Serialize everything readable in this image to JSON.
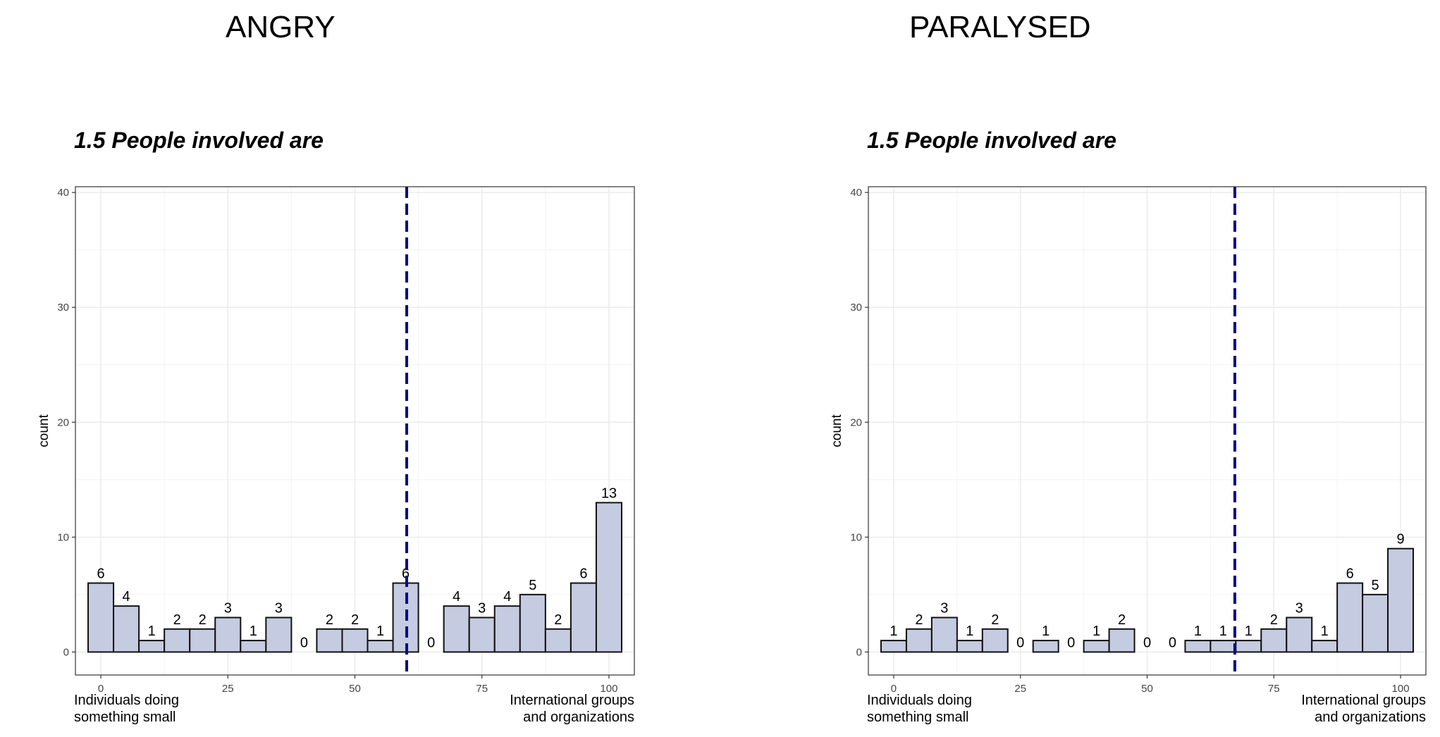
{
  "titles": {
    "left": "ANGRY",
    "right": "PARALYSED"
  },
  "colors": {
    "bar_fill": "#c5cbe0",
    "bar_stroke": "#111111",
    "mean_line": "#0a0a80",
    "grid": "#ebebeb",
    "frame": "#333333"
  },
  "chart_data": [
    {
      "type": "bar",
      "title": "1.5 People involved are",
      "ylabel": "count",
      "xlabel_left": [
        "Individuals doing",
        "something small"
      ],
      "xlabel_right": [
        "International groups",
        "and organizations"
      ],
      "xlim": [
        -5,
        105
      ],
      "ylim": [
        -2,
        40.5
      ],
      "xticks": [
        0,
        25,
        50,
        75,
        100
      ],
      "yticks": [
        0,
        10,
        20,
        30,
        40
      ],
      "bin_centers": [
        0,
        5,
        10,
        15,
        20,
        25,
        30,
        35,
        40,
        45,
        50,
        55,
        60,
        65,
        70,
        75,
        80,
        85,
        90,
        95,
        100
      ],
      "bin_width": 5,
      "values": [
        6,
        4,
        1,
        2,
        2,
        3,
        1,
        3,
        0,
        2,
        2,
        1,
        6,
        0,
        4,
        3,
        4,
        5,
        2,
        6,
        13
      ],
      "mean_line_x": 60.2
    },
    {
      "type": "bar",
      "title": "1.5 People involved are",
      "ylabel": "count",
      "xlabel_left": [
        "Individuals doing",
        "something small"
      ],
      "xlabel_right": [
        "International groups",
        "and organizations"
      ],
      "xlim": [
        -5,
        105
      ],
      "ylim": [
        -2,
        40.5
      ],
      "xticks": [
        0,
        25,
        50,
        75,
        100
      ],
      "yticks": [
        0,
        10,
        20,
        30,
        40
      ],
      "bin_centers": [
        0,
        5,
        10,
        15,
        20,
        25,
        30,
        35,
        40,
        45,
        50,
        55,
        60,
        65,
        70,
        75,
        80,
        85,
        90,
        95,
        100
      ],
      "bin_width": 5,
      "values": [
        1,
        2,
        3,
        1,
        2,
        0,
        1,
        0,
        1,
        2,
        0,
        0,
        1,
        1,
        1,
        2,
        3,
        1,
        6,
        5,
        9
      ],
      "mean_line_x": 67.3
    }
  ]
}
